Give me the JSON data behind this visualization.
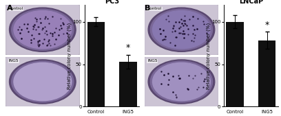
{
  "panel_A_title": "PC3",
  "panel_B_title": "LNCaP",
  "categories": [
    "Control",
    "ING5"
  ],
  "pc3_values": [
    100,
    53
  ],
  "pc3_errors": [
    5,
    8
  ],
  "lncap_values": [
    100,
    78
  ],
  "lncap_errors": [
    8,
    10
  ],
  "bar_color": "#111111",
  "bar_width": 0.55,
  "ylabel": "Relative colony number (%)",
  "ylim": [
    0,
    120
  ],
  "yticks": [
    0,
    50,
    100
  ],
  "star_fontsize": 9,
  "title_fontsize": 7,
  "label_fontsize": 5,
  "tick_fontsize": 5,
  "panel_label_fontsize": 8,
  "background_color": "#ffffff",
  "dish_bg": "#c8c0cc",
  "dish_outer_ring": "#6a5080",
  "dish_inner_color_ctrl_pc3": "#9880b8",
  "dish_inner_color_ing5_pc3": "#b0a0cc",
  "dish_inner_color_ctrl_lncap": "#8878b0",
  "dish_inner_color_ing5_lncap": "#a090c0",
  "dish_outer_bg": "#c0b8c8",
  "colony_color": "#150828"
}
